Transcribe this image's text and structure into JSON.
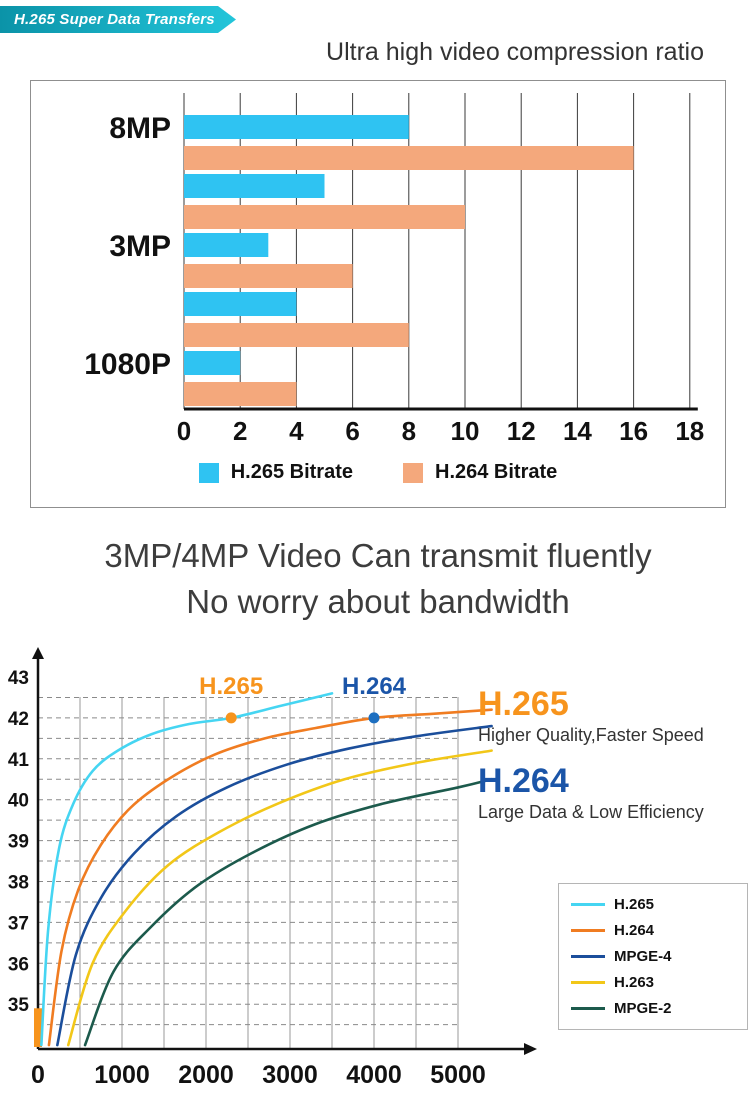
{
  "banner": {
    "title": "H.265 Super Data Transfers",
    "bg_from": "#0b93a8",
    "bg_to": "#23c5da"
  },
  "subtitle": "Ultra high video compression ratio",
  "heading": {
    "line1": "3MP/4MP Video Can transmit fluently",
    "line2": "No worry about bandwidth"
  },
  "chart_data": [
    {
      "type": "bar",
      "orientation": "horizontal",
      "categories": [
        "8MP",
        "",
        "3MP",
        "",
        "1080P"
      ],
      "series": [
        {
          "name": "H.265 Bitrate",
          "color": "#2fc3f2",
          "values": [
            8,
            5,
            3,
            4,
            2
          ]
        },
        {
          "name": "H.264 Bitrate",
          "color": "#f4a87c",
          "values": [
            16,
            10,
            6,
            8,
            4
          ]
        }
      ],
      "xlim": [
        0,
        18
      ],
      "xticks": [
        0,
        2,
        4,
        6,
        8,
        10,
        12,
        14,
        16,
        18
      ],
      "grid": "vertical"
    },
    {
      "type": "line",
      "xticks": [
        0,
        1000,
        2000,
        3000,
        4000,
        5000
      ],
      "yticks": [
        35,
        36,
        37,
        38,
        39,
        40,
        41,
        42,
        43
      ],
      "xlim": [
        0,
        5400
      ],
      "ylim": [
        34,
        43.6
      ],
      "grid": {
        "horizontal": "dashed every 0.5",
        "vertical": "solid every 500"
      },
      "axis_accent_color": "#f7941d",
      "series": [
        {
          "name": "H.265",
          "color": "#45d5f2",
          "points": [
            [
              40,
              34.0
            ],
            [
              120,
              36.8
            ],
            [
              250,
              38.8
            ],
            [
              420,
              39.9
            ],
            [
              650,
              40.7
            ],
            [
              950,
              41.2
            ],
            [
              1350,
              41.6
            ],
            [
              1800,
              41.85
            ],
            [
              2300,
              42.0
            ],
            [
              2900,
              42.3
            ],
            [
              3500,
              42.6
            ]
          ]
        },
        {
          "name": "H.264",
          "color": "#f07c21",
          "points": [
            [
              130,
              34.0
            ],
            [
              280,
              36.3
            ],
            [
              480,
              37.8
            ],
            [
              750,
              38.9
            ],
            [
              1100,
              39.8
            ],
            [
              1550,
              40.5
            ],
            [
              2100,
              41.1
            ],
            [
              2700,
              41.5
            ],
            [
              3300,
              41.75
            ],
            [
              4000,
              42.0
            ],
            [
              4700,
              42.1
            ],
            [
              5400,
              42.2
            ]
          ]
        },
        {
          "name": "MPGE-4",
          "color": "#1b4e9b",
          "points": [
            [
              230,
              34.0
            ],
            [
              450,
              36.2
            ],
            [
              750,
              37.6
            ],
            [
              1150,
              38.7
            ],
            [
              1650,
              39.6
            ],
            [
              2250,
              40.3
            ],
            [
              2950,
              40.85
            ],
            [
              3700,
              41.25
            ],
            [
              4500,
              41.55
            ],
            [
              5400,
              41.8
            ]
          ]
        },
        {
          "name": "H.263",
          "color": "#f2c718",
          "points": [
            [
              360,
              34.0
            ],
            [
              650,
              36.0
            ],
            [
              1050,
              37.3
            ],
            [
              1550,
              38.4
            ],
            [
              2150,
              39.2
            ],
            [
              2850,
              39.9
            ],
            [
              3650,
              40.5
            ],
            [
              4500,
              40.9
            ],
            [
              5400,
              41.2
            ]
          ]
        },
        {
          "name": "MPGE-2",
          "color": "#1c5a4c",
          "points": [
            [
              560,
              34.0
            ],
            [
              900,
              35.8
            ],
            [
              1350,
              36.9
            ],
            [
              1900,
              37.9
            ],
            [
              2550,
              38.7
            ],
            [
              3300,
              39.4
            ],
            [
              4100,
              39.9
            ],
            [
              5000,
              40.3
            ],
            [
              5400,
              40.5
            ]
          ]
        }
      ],
      "markers": [
        {
          "label": "H.265",
          "x": 2300,
          "y": 42,
          "color": "#f7941d",
          "label_color": "#f7941d"
        },
        {
          "label": "H.264",
          "x": 4000,
          "y": 42,
          "color": "#1d6fc0",
          "label_color": "#1b55a8"
        }
      ]
    }
  ],
  "side_panel": [
    {
      "title": "H.265",
      "desc": "Higher Quality,Faster Speed",
      "color": "#f7941d"
    },
    {
      "title": "H.264",
      "desc": "Large Data & Low Efficiency",
      "color": "#1b55a8"
    }
  ]
}
